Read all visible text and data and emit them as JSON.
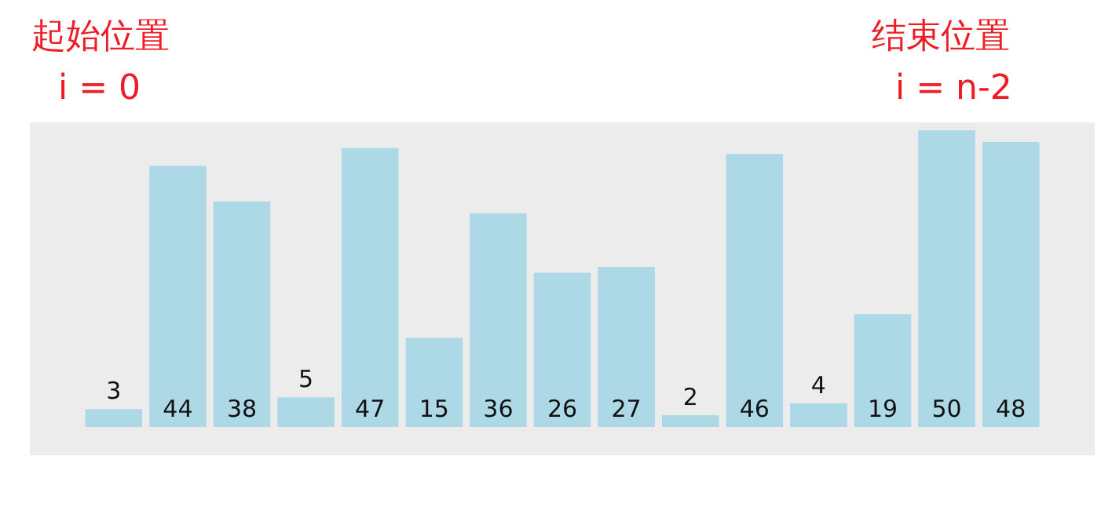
{
  "chart_data": {
    "type": "bar",
    "categories": [
      null,
      null,
      null,
      null,
      null,
      null,
      null,
      null,
      null,
      null,
      null,
      null,
      null,
      null,
      null
    ],
    "values": [
      3,
      44,
      38,
      5,
      47,
      15,
      36,
      26,
      27,
      2,
      46,
      4,
      19,
      50,
      48
    ],
    "color": "#add8e6",
    "data_labels": true,
    "legend": false,
    "annotations": [
      "起始位置",
      "i = 0",
      "结束位置",
      "i = n-2"
    ]
  }
}
